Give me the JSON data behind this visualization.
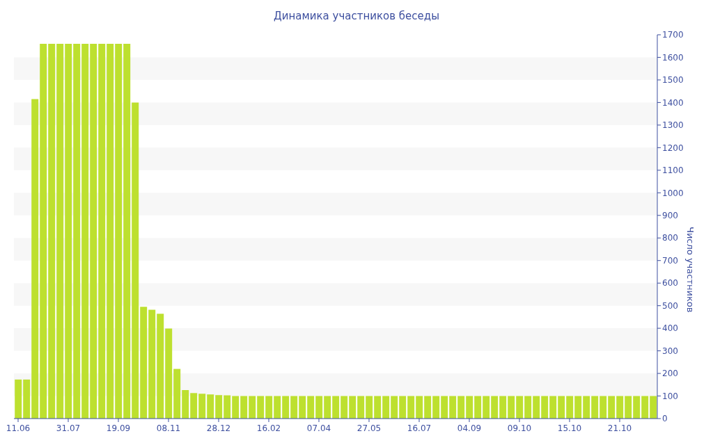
{
  "chart_data": {
    "type": "bar",
    "title": "Динамика участников беседы",
    "ylabel": "Число участников",
    "categories": [
      "11.06",
      null,
      null,
      null,
      null,
      null,
      "31.07",
      null,
      null,
      null,
      null,
      null,
      "19.09",
      null,
      null,
      null,
      null,
      null,
      "08.11",
      null,
      null,
      null,
      null,
      null,
      "28.12",
      null,
      null,
      null,
      null,
      null,
      "16.02",
      null,
      null,
      null,
      null,
      null,
      "07.04",
      null,
      null,
      null,
      null,
      null,
      "27.05",
      null,
      null,
      null,
      null,
      null,
      "16.07",
      null,
      null,
      null,
      null,
      null,
      "04.09",
      null,
      null,
      null,
      null,
      null,
      "09.10",
      null,
      null,
      null,
      null,
      null,
      "15.10",
      null,
      null,
      null,
      null,
      null,
      "21.10",
      null,
      null,
      null,
      null
    ],
    "values": [
      173,
      173,
      1415,
      1660,
      1660,
      1660,
      1660,
      1660,
      1660,
      1660,
      1660,
      1660,
      1660,
      1660,
      1400,
      495,
      482,
      464,
      399,
      220,
      126,
      113,
      110,
      107,
      104,
      103,
      100,
      100,
      100,
      100,
      100,
      100,
      100,
      100,
      100,
      100,
      100,
      100,
      100,
      100,
      100,
      100,
      100,
      100,
      100,
      100,
      100,
      100,
      100,
      100,
      100,
      100,
      100,
      100,
      100,
      100,
      100,
      100,
      100,
      100,
      100,
      100,
      100,
      100,
      100,
      100,
      100,
      100,
      100,
      100,
      100,
      100,
      100,
      100,
      100,
      100,
      100
    ],
    "color": "#bde02f",
    "ylim": [
      0,
      1700
    ],
    "yticks": [
      0,
      100,
      200,
      300,
      400,
      500,
      600,
      700,
      800,
      900,
      1000,
      1100,
      1200,
      1300,
      1400,
      1500,
      1600,
      1700
    ],
    "bands": [
      {
        "axis": "y",
        "from": 100,
        "to": 200,
        "color": "#f7f7f7"
      },
      {
        "axis": "y",
        "from": 300,
        "to": 400,
        "color": "#f7f7f7"
      },
      {
        "axis": "y",
        "from": 500,
        "to": 600,
        "color": "#f7f7f7"
      },
      {
        "axis": "y",
        "from": 700,
        "to": 800,
        "color": "#f7f7f7"
      },
      {
        "axis": "y",
        "from": 900,
        "to": 1000,
        "color": "#f7f7f7"
      },
      {
        "axis": "y",
        "from": 1100,
        "to": 1200,
        "color": "#f7f7f7"
      },
      {
        "axis": "y",
        "from": 1300,
        "to": 1400,
        "color": "#f7f7f7"
      },
      {
        "axis": "y",
        "from": 1500,
        "to": 1600,
        "color": "#f7f7f7"
      }
    ]
  }
}
